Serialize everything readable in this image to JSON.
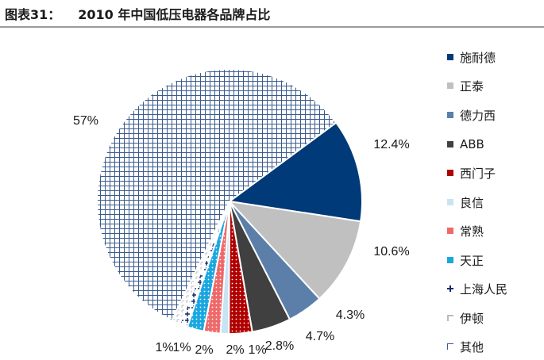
{
  "header": {
    "figure_label": "图表31：",
    "title": "2010 年中国低压电器各品牌占比"
  },
  "chart_data": {
    "type": "pie",
    "title": "2010 年中国低压电器各品牌占比",
    "legend_position": "right",
    "series": [
      {
        "name": "施耐德",
        "value": 12.4,
        "label": "12.4%",
        "color": "#003a78",
        "pattern": "solid"
      },
      {
        "name": "正泰",
        "value": 10.6,
        "label": "10.6%",
        "color": "#c0c0c0",
        "pattern": "solid"
      },
      {
        "name": "德力西",
        "value": 4.3,
        "label": "4.3%",
        "color": "#5b7fa8",
        "pattern": "solid"
      },
      {
        "name": "ABB",
        "value": 4.7,
        "label": "4.7%",
        "color": "#404040",
        "pattern": "solid"
      },
      {
        "name": "西门子",
        "value": 2.8,
        "label": "2.8%",
        "color": "#b00000",
        "pattern": "dots"
      },
      {
        "name": "良信",
        "value": 1,
        "label": "1%",
        "color": "#c8e3f4",
        "pattern": "solid"
      },
      {
        "name": "常熟",
        "value": 2,
        "label": "2%",
        "color": "#ee6a6a",
        "pattern": "dots"
      },
      {
        "name": "天正",
        "value": 2,
        "label": "2%",
        "color": "#1aa7e0",
        "pattern": "dots"
      },
      {
        "name": "上海人民",
        "value": 1,
        "label": "1%",
        "color": "#0a2a6a",
        "pattern": "cross"
      },
      {
        "name": "伊顿",
        "value": 1,
        "label": "1%",
        "color": "#bcbcbc",
        "pattern": "corner"
      },
      {
        "name": "其他",
        "value": 57,
        "label": "57%",
        "color": "#3b5b8e",
        "pattern": "grid"
      }
    ]
  }
}
